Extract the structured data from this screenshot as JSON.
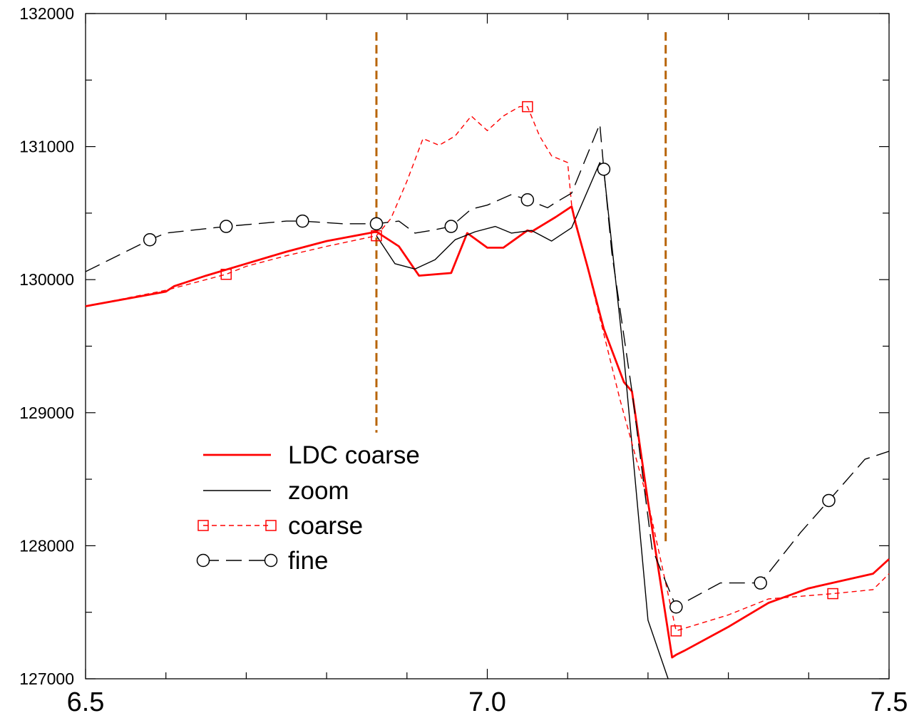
{
  "chart_data": {
    "type": "line",
    "title": "",
    "xlabel": "",
    "ylabel": "",
    "xlim": [
      6.5,
      7.5
    ],
    "ylim": [
      127000,
      132000
    ],
    "x_ticks": [
      6.5,
      7.0,
      7.5
    ],
    "x_tick_labels": [
      "6.5",
      "7.0",
      "7.5"
    ],
    "x_minor_ticks": [
      6.6,
      6.7,
      6.8,
      6.9,
      7.1,
      7.2,
      7.3,
      7.4
    ],
    "y_ticks": [
      127000,
      128000,
      129000,
      130000,
      131000,
      132000
    ],
    "y_tick_labels": [
      "127000",
      "128000",
      "129000",
      "130000",
      "131000",
      "132000"
    ],
    "y_minor_ticks": [
      127500,
      128500,
      129500,
      130500,
      131500
    ],
    "grid": false,
    "legend_position": "lower-left",
    "colors": {
      "ldc": "#ff0000",
      "zoom": "#000000",
      "coarse": "#ff0000",
      "fine": "#000000",
      "marker_line": "#b8650a"
    },
    "vertical_lines": [
      {
        "x": 6.862,
        "y_range": [
          128850,
          131860
        ]
      },
      {
        "x": 7.222,
        "y_range": [
          128030,
          131860
        ]
      }
    ],
    "series": [
      {
        "name": "LDC coarse",
        "style": "solid-thick",
        "x": [
          6.5,
          6.6,
          6.61,
          6.65,
          6.7,
          6.75,
          6.8,
          6.862,
          6.89,
          6.915,
          6.955,
          6.975,
          7.0,
          7.02,
          7.05,
          7.055,
          7.085,
          7.105,
          7.11,
          7.125,
          7.145,
          7.17,
          7.18,
          7.2,
          7.23,
          7.235,
          7.245,
          7.3,
          7.35,
          7.4,
          7.48,
          7.5
        ],
        "y": [
          129800,
          129910,
          129950,
          130030,
          130120,
          130210,
          130290,
          130360,
          130250,
          130030,
          130050,
          130350,
          130240,
          130240,
          130370,
          130360,
          130470,
          130550,
          130420,
          130090,
          129630,
          129230,
          129160,
          128330,
          127160,
          127180,
          127210,
          127390,
          127570,
          127680,
          127790,
          127900
        ]
      },
      {
        "name": "zoom",
        "style": "solid-thin",
        "x": [
          6.862,
          6.885,
          6.91,
          6.935,
          6.96,
          6.985,
          7.01,
          7.03,
          7.055,
          7.08,
          7.09,
          7.105,
          7.14,
          7.145,
          7.17,
          7.2,
          7.225
        ],
        "y": [
          130330,
          130120,
          130080,
          130150,
          130300,
          130360,
          130400,
          130350,
          130370,
          130290,
          130330,
          130390,
          130880,
          130820,
          129420,
          127440,
          127000
        ]
      },
      {
        "name": "coarse",
        "style": "dashed-square",
        "x": [
          6.5,
          6.6,
          6.675,
          6.7,
          6.75,
          6.8,
          6.862,
          6.88,
          6.9,
          6.92,
          6.94,
          6.96,
          6.98,
          7.0,
          7.02,
          7.04,
          7.05,
          7.065,
          7.08,
          7.1,
          7.105,
          7.13,
          7.165,
          7.2,
          7.235,
          7.3,
          7.35,
          7.43,
          7.48,
          7.5
        ],
        "y": [
          129800,
          129920,
          130040,
          130100,
          130180,
          130250,
          130330,
          130460,
          130740,
          131060,
          131010,
          131080,
          131230,
          131120,
          131230,
          131300,
          131300,
          131080,
          130930,
          130880,
          130560,
          129960,
          129100,
          128330,
          127360,
          127480,
          127600,
          127640,
          127670,
          127790
        ],
        "marker_x": [
          6.675,
          6.862,
          7.05,
          7.235,
          7.43
        ],
        "marker_y": [
          130040,
          130330,
          131300,
          127360,
          127640
        ]
      },
      {
        "name": "fine",
        "style": "longdash-circle",
        "x": [
          6.5,
          6.55,
          6.58,
          6.6,
          6.675,
          6.75,
          6.77,
          6.82,
          6.862,
          6.89,
          6.91,
          6.93,
          6.955,
          6.98,
          7.0,
          7.03,
          7.05,
          7.075,
          7.085,
          7.105,
          7.14,
          7.145,
          7.155,
          7.18,
          7.205,
          7.235,
          7.29,
          7.34,
          7.39,
          7.425,
          7.47,
          7.5
        ],
        "y": [
          130060,
          130210,
          130300,
          130350,
          130400,
          130440,
          130440,
          130420,
          130420,
          130440,
          130350,
          130370,
          130400,
          130530,
          130560,
          130640,
          130600,
          130540,
          130580,
          130650,
          131170,
          130830,
          130200,
          129160,
          127980,
          127540,
          127720,
          127720,
          128100,
          128340,
          128650,
          128710
        ],
        "marker_x": [
          6.58,
          6.675,
          6.77,
          6.862,
          6.955,
          7.05,
          7.145,
          7.235,
          7.34,
          7.425
        ],
        "marker_y": [
          130300,
          130400,
          130440,
          130420,
          130400,
          130600,
          130830,
          127540,
          127720,
          128340
        ]
      }
    ]
  }
}
